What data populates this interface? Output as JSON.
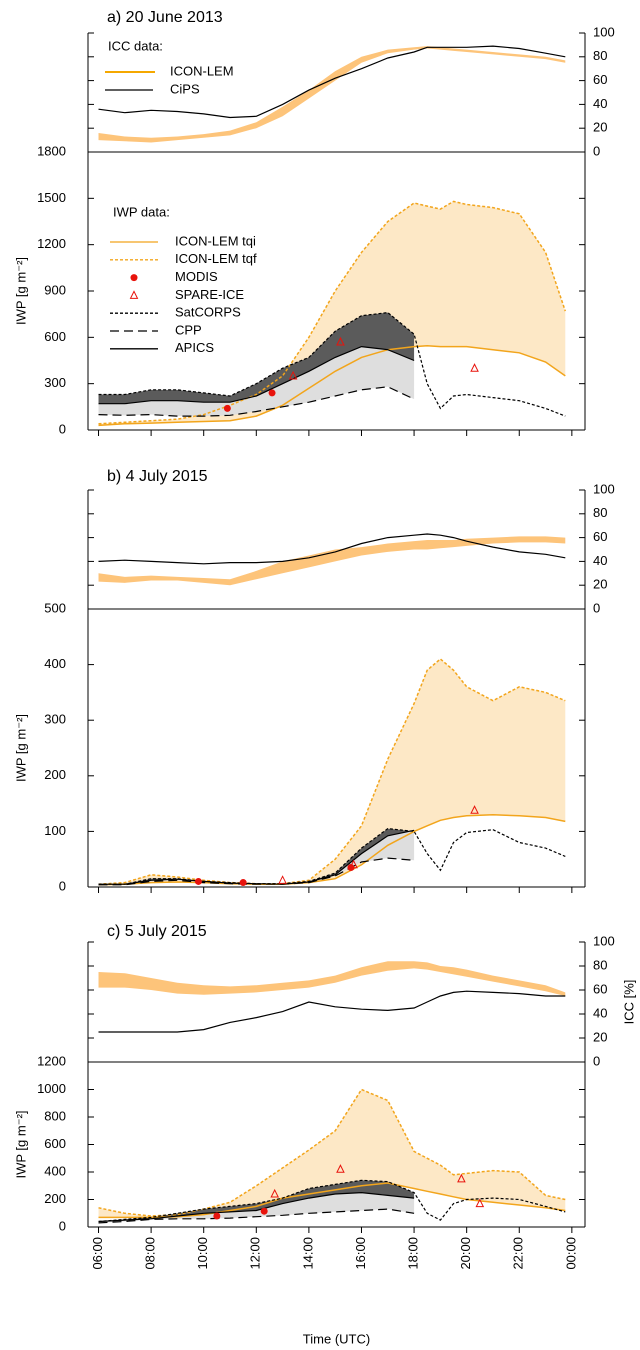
{
  "chart_data": [
    {
      "type": "line",
      "title": "a) 20 June 2013",
      "legend": true,
      "legend_title": "ICC data:",
      "xlim": [
        5.6,
        24.5
      ],
      "x": [
        6,
        7,
        8,
        9,
        10,
        11,
        12,
        13,
        14,
        15,
        16,
        17,
        18,
        18.5,
        19,
        19.5,
        20,
        21,
        22,
        23,
        23.75
      ],
      "y2lim": [
        0,
        100
      ],
      "y2ticks": [
        0,
        20,
        40,
        60,
        80,
        100
      ],
      "series": [
        {
          "name": "ICON-LEM",
          "color": "#fdc47a",
          "style": "band",
          "axis": "y2",
          "lower": [
            10,
            9,
            8,
            10,
            12,
            14,
            20,
            30,
            45,
            60,
            75,
            83,
            86,
            87,
            86,
            85,
            84,
            82,
            80,
            78,
            75
          ],
          "upper": [
            16,
            13,
            12,
            13,
            15,
            18,
            25,
            38,
            52,
            68,
            80,
            86,
            88,
            89,
            88,
            87,
            86,
            84,
            82,
            80,
            77
          ]
        },
        {
          "name": "CiPS",
          "color": "#000000",
          "style": "solid",
          "axis": "y2",
          "values": [
            36,
            33,
            35,
            34,
            32,
            29,
            30,
            40,
            52,
            62,
            70,
            79,
            84,
            88,
            88,
            88,
            88,
            89,
            87,
            83,
            80
          ]
        }
      ]
    },
    {
      "type": "line",
      "ylabel": "IWP [g m⁻²]",
      "legend": true,
      "legend_title": "IWP data:",
      "xlim": [
        5.6,
        24.5
      ],
      "x": [
        6,
        7,
        8,
        9,
        10,
        11,
        12,
        13,
        14,
        15,
        16,
        17,
        18,
        18.5,
        19,
        19.5,
        20,
        21,
        22,
        23,
        23.75
      ],
      "ylim": [
        0,
        1800
      ],
      "yticks": [
        0,
        300,
        600,
        900,
        1200,
        1500,
        1800
      ],
      "fill_colors": [
        "#fde8c6",
        "#5b5b5b",
        "#dedede"
      ],
      "series": [
        {
          "name": "ICON-LEM tqi",
          "color": "#f2a51c",
          "style": "solid",
          "values": [
            30,
            40,
            45,
            50,
            55,
            60,
            90,
            160,
            270,
            380,
            470,
            520,
            540,
            545,
            540,
            540,
            540,
            520,
            500,
            440,
            350
          ]
        },
        {
          "name": "ICON-LEM tqf",
          "color": "#f2a51c",
          "style": "dotted",
          "values": [
            40,
            50,
            60,
            70,
            100,
            160,
            230,
            350,
            600,
            900,
            1150,
            1350,
            1470,
            1450,
            1430,
            1480,
            1460,
            1440,
            1400,
            1150,
            770
          ]
        },
        {
          "name": "MODIS",
          "color": "#e8130c",
          "style": "dot",
          "x": [
            10.9,
            12.6
          ],
          "values": [
            140,
            240
          ]
        },
        {
          "name": "SPARE-ICE",
          "color": "#e8130c",
          "style": "triangle",
          "x": [
            13.4,
            15.2,
            20.3
          ],
          "values": [
            350,
            570,
            400
          ]
        },
        {
          "name": "SatCORPS",
          "color": "#000000",
          "style": "dotted",
          "values": [
            230,
            230,
            260,
            260,
            240,
            220,
            300,
            400,
            470,
            640,
            740,
            760,
            620,
            300,
            140,
            220,
            230,
            210,
            190,
            140,
            90
          ]
        },
        {
          "name": "CPP",
          "color": "#000000",
          "style": "dashed",
          "values": [
            100,
            95,
            100,
            90,
            90,
            95,
            120,
            150,
            180,
            220,
            260,
            280,
            200,
            null,
            null,
            null,
            null,
            null,
            null,
            null,
            null
          ]
        },
        {
          "name": "APICS",
          "color": "#000000",
          "style": "solid",
          "values": [
            170,
            170,
            190,
            190,
            180,
            180,
            220,
            300,
            380,
            470,
            540,
            520,
            450,
            null,
            null,
            null,
            null,
            null,
            null,
            null,
            null
          ]
        }
      ]
    },
    {
      "type": "line",
      "title": "b) 4 July 2015",
      "xlim": [
        5.6,
        24.5
      ],
      "x": [
        6,
        7,
        8,
        9,
        10,
        11,
        12,
        13,
        14,
        15,
        16,
        17,
        18,
        18.5,
        19,
        19.5,
        20,
        21,
        22,
        23,
        23.75
      ],
      "y2lim": [
        0,
        100
      ],
      "y2ticks": [
        0,
        20,
        40,
        60,
        80,
        100
      ],
      "series": [
        {
          "color": "#fdc47a",
          "style": "band",
          "axis": "y2",
          "lower": [
            23,
            22,
            24,
            24,
            22,
            20,
            25,
            30,
            35,
            40,
            45,
            48,
            50,
            50,
            51,
            52,
            53,
            55,
            56,
            56,
            55
          ],
          "upper": [
            30,
            27,
            28,
            27,
            26,
            25,
            32,
            40,
            45,
            50,
            52,
            55,
            57,
            58,
            58,
            58,
            59,
            60,
            61,
            61,
            60
          ]
        },
        {
          "color": "#000000",
          "style": "solid",
          "axis": "y2",
          "values": [
            40,
            41,
            40,
            39,
            38,
            39,
            39,
            40,
            43,
            48,
            55,
            60,
            62,
            63,
            62,
            60,
            57,
            52,
            48,
            46,
            43
          ]
        }
      ]
    },
    {
      "type": "line",
      "ylabel": "IWP [g m⁻²]",
      "xlim": [
        5.6,
        24.5
      ],
      "x": [
        6,
        7,
        8,
        9,
        10,
        11,
        12,
        13,
        14,
        15,
        16,
        17,
        18,
        18.5,
        19,
        19.5,
        20,
        21,
        22,
        23,
        23.75
      ],
      "ylim": [
        0,
        500
      ],
      "yticks": [
        0,
        100,
        200,
        300,
        400,
        500
      ],
      "fill_colors": [
        "#fde8c6",
        "#5b5b5b",
        "#dedede"
      ],
      "series": [
        {
          "color": "#f2a51c",
          "style": "solid",
          "values": [
            4,
            5,
            8,
            9,
            8,
            6,
            5,
            5,
            8,
            15,
            40,
            75,
            100,
            110,
            120,
            125,
            128,
            130,
            128,
            125,
            118
          ]
        },
        {
          "color": "#f2a51c",
          "style": "dotted",
          "values": [
            5,
            8,
            22,
            18,
            12,
            8,
            6,
            6,
            12,
            50,
            110,
            230,
            330,
            390,
            410,
            390,
            360,
            335,
            360,
            350,
            335
          ]
        },
        {
          "color": "#e8130c",
          "style": "dot",
          "x": [
            9.8,
            11.5,
            15.6
          ],
          "values": [
            10,
            8,
            35
          ]
        },
        {
          "color": "#e8130c",
          "style": "triangle",
          "x": [
            13.0,
            15.7,
            20.3
          ],
          "values": [
            12,
            40,
            138
          ]
        },
        {
          "color": "#000000",
          "style": "dotted",
          "values": [
            5,
            5,
            15,
            15,
            10,
            8,
            6,
            6,
            10,
            25,
            70,
            105,
            100,
            60,
            30,
            80,
            98,
            103,
            80,
            70,
            55
          ]
        },
        {
          "color": "#000000",
          "style": "dashed",
          "values": [
            4,
            4,
            10,
            12,
            8,
            6,
            5,
            5,
            8,
            20,
            45,
            52,
            48,
            null,
            null,
            null,
            null,
            null,
            null,
            null,
            null
          ]
        },
        {
          "color": "#000000",
          "style": "solid",
          "values": [
            5,
            5,
            12,
            14,
            10,
            7,
            6,
            5,
            9,
            22,
            60,
            92,
            102,
            null,
            null,
            null,
            null,
            null,
            null,
            null,
            null
          ]
        }
      ]
    },
    {
      "type": "line",
      "title": "c) 5 July 2015",
      "y2label": "ICC [%]",
      "xlim": [
        5.6,
        24.5
      ],
      "x": [
        6,
        7,
        8,
        9,
        10,
        11,
        12,
        13,
        14,
        15,
        16,
        17,
        18,
        18.5,
        19,
        19.5,
        20,
        21,
        22,
        23,
        23.75
      ],
      "y2lim": [
        0,
        100
      ],
      "y2ticks": [
        0,
        20,
        40,
        60,
        80,
        100
      ],
      "series": [
        {
          "color": "#fdc47a",
          "style": "band",
          "axis": "y2",
          "lower": [
            62,
            62,
            60,
            57,
            56,
            57,
            58,
            60,
            62,
            66,
            72,
            76,
            78,
            77,
            75,
            73,
            71,
            67,
            63,
            59,
            55
          ],
          "upper": [
            75,
            74,
            70,
            66,
            64,
            63,
            64,
            66,
            68,
            72,
            79,
            84,
            84,
            83,
            80,
            79,
            77,
            72,
            68,
            64,
            58
          ]
        },
        {
          "color": "#000000",
          "style": "solid",
          "axis": "y2",
          "values": [
            25,
            25,
            25,
            25,
            27,
            33,
            37,
            42,
            50,
            46,
            44,
            43,
            45,
            50,
            55,
            58,
            59,
            58,
            57,
            55,
            55
          ]
        }
      ]
    },
    {
      "type": "line",
      "ylabel": "IWP [g m⁻²]",
      "xlabel": "Time (UTC)",
      "xlim": [
        5.6,
        24.5
      ],
      "x": [
        6,
        7,
        8,
        9,
        10,
        11,
        12,
        13,
        14,
        15,
        16,
        17,
        18,
        18.5,
        19,
        19.5,
        20,
        21,
        22,
        23,
        23.75
      ],
      "xticks": [
        {
          "value": 6,
          "label": "06:00"
        },
        {
          "value": 8,
          "label": "08:00"
        },
        {
          "value": 10,
          "label": "10:00"
        },
        {
          "value": 12,
          "label": "12:00"
        },
        {
          "value": 14,
          "label": "14:00"
        },
        {
          "value": 16,
          "label": "16:00"
        },
        {
          "value": 18,
          "label": "18:00"
        },
        {
          "value": 20,
          "label": "20:00"
        },
        {
          "value": 22,
          "label": "22:00"
        },
        {
          "value": 24,
          "label": "00:00"
        }
      ],
      "ylim": [
        0,
        1200
      ],
      "yticks": [
        0,
        200,
        400,
        600,
        800,
        1000,
        1200
      ],
      "fill_colors": [
        "#fde8c6",
        "#5b5b5b",
        "#dedede"
      ],
      "series": [
        {
          "color": "#f2a51c",
          "style": "solid",
          "values": [
            70,
            70,
            70,
            75,
            90,
            120,
            150,
            210,
            240,
            270,
            300,
            320,
            280,
            260,
            240,
            220,
            200,
            180,
            160,
            140,
            120
          ]
        },
        {
          "color": "#f2a51c",
          "style": "dotted",
          "values": [
            140,
            100,
            80,
            90,
            130,
            180,
            300,
            430,
            560,
            700,
            1000,
            920,
            550,
            500,
            450,
            380,
            390,
            410,
            400,
            230,
            200
          ]
        },
        {
          "color": "#e8130c",
          "style": "dot",
          "x": [
            10.5,
            12.3
          ],
          "values": [
            80,
            115
          ]
        },
        {
          "color": "#e8130c",
          "style": "triangle",
          "x": [
            12.7,
            15.2,
            19.8,
            20.5
          ],
          "values": [
            240,
            420,
            350,
            170
          ]
        },
        {
          "color": "#000000",
          "style": "dotted",
          "values": [
            40,
            55,
            70,
            100,
            130,
            150,
            170,
            210,
            280,
            310,
            340,
            330,
            250,
            100,
            50,
            170,
            200,
            210,
            200,
            150,
            110
          ]
        },
        {
          "color": "#000000",
          "style": "dashed",
          "values": [
            30,
            40,
            55,
            60,
            60,
            65,
            75,
            85,
            100,
            110,
            120,
            130,
            100,
            null,
            null,
            null,
            null,
            null,
            null,
            null,
            null
          ]
        },
        {
          "color": "#000000",
          "style": "solid",
          "values": [
            40,
            50,
            60,
            80,
            100,
            110,
            120,
            170,
            210,
            240,
            250,
            230,
            210,
            null,
            null,
            null,
            null,
            null,
            null,
            null,
            null
          ]
        }
      ]
    }
  ]
}
